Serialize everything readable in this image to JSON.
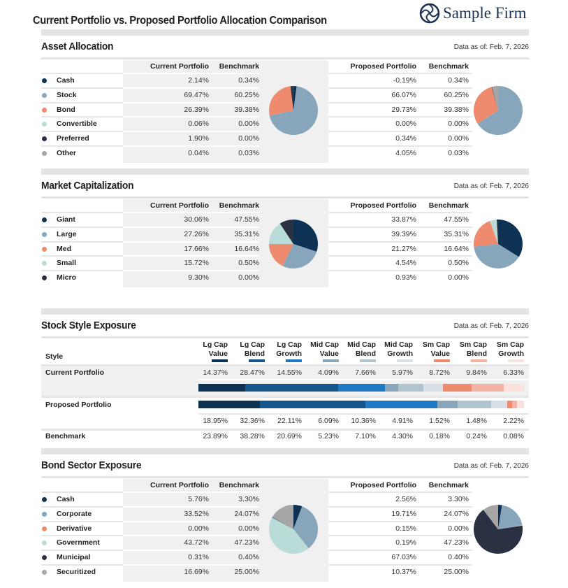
{
  "title": "Current Portfolio vs. Proposed Portfolio Allocation Comparison",
  "logo": {
    "text": "Sample Firm",
    "icon": "swirl-logo-icon"
  },
  "colors": {
    "cash": "#0e3253",
    "stock": "#87a6bc",
    "bond": "#ee8a6e",
    "convertible": "#b9dcd8",
    "preferred": "#2a3142",
    "other": "#a6a6a6"
  },
  "chart_data": [
    {
      "type": "pie",
      "title": "Asset Allocation",
      "date": "Data as of: Feb. 7, 2026",
      "headers": {
        "current": "Current Portfolio",
        "benchmark": "Benchmark",
        "proposed": "Proposed Portfolio",
        "benchmark2": "Benchmark"
      },
      "categories": [
        "Cash",
        "Stock",
        "Bond",
        "Convertible",
        "Preferred",
        "Other"
      ],
      "colors": [
        "#0e3253",
        "#87a6bc",
        "#ee8a6e",
        "#b9dcd8",
        "#2a3142",
        "#a6a6a6"
      ],
      "current": [
        "2.14%",
        "69.47%",
        "26.39%",
        "0.06%",
        "1.90%",
        "0.04%"
      ],
      "current_benchmark": [
        "0.34%",
        "60.25%",
        "39.38%",
        "0.00%",
        "0.00%",
        "0.03%"
      ],
      "proposed": [
        "-0.19%",
        "66.07%",
        "29.73%",
        "0.00%",
        "0.34%",
        "4.05%"
      ],
      "proposed_benchmark": [
        "0.34%",
        "60.25%",
        "39.38%",
        "0.00%",
        "0.00%",
        "0.03%"
      ]
    },
    {
      "type": "pie",
      "title": "Market Capitalization",
      "date": "Data as of: Feb. 7, 2026",
      "headers": {
        "current": "Current Portfolio",
        "benchmark": "Benchmark",
        "proposed": "Proposed Portfolio",
        "benchmark2": "Benchmark"
      },
      "categories": [
        "Giant",
        "Large",
        "Med",
        "Small",
        "Micro"
      ],
      "colors": [
        "#0e3253",
        "#87a6bc",
        "#ee8a6e",
        "#b9dcd8",
        "#2a3142"
      ],
      "current": [
        "30.06%",
        "27.26%",
        "17.66%",
        "15.72%",
        "9.30%"
      ],
      "current_benchmark": [
        "47.55%",
        "35.31%",
        "16.64%",
        "0.50%",
        "0.00%"
      ],
      "proposed": [
        "33.87%",
        "39.39%",
        "21.27%",
        "4.54%",
        "0.93%"
      ],
      "proposed_benchmark": [
        "47.55%",
        "35.31%",
        "16.64%",
        "0.50%",
        "0.00%"
      ]
    },
    {
      "type": "bar",
      "title": "Stock Style Exposure",
      "date": "Data as of: Feb. 7, 2026",
      "style_label": "Style",
      "categories": [
        [
          "Lg Cap",
          "Value"
        ],
        [
          "Lg Cap",
          "Blend"
        ],
        [
          "Lg Cap",
          "Growth"
        ],
        [
          "Mid Cap",
          "Value"
        ],
        [
          "Mid Cap",
          "Blend"
        ],
        [
          "Mid Cap",
          "Growth"
        ],
        [
          "Sm Cap",
          "Value"
        ],
        [
          "Sm Cap",
          "Blend"
        ],
        [
          "Sm Cap",
          "Growth"
        ]
      ],
      "colors": [
        "#0c3354",
        "#14568c",
        "#1f78c4",
        "#87a6bc",
        "#b0c4d0",
        "#d6e0e6",
        "#ee8a6e",
        "#f4b3a3",
        "#fbe1dc"
      ],
      "series": [
        {
          "name": "Current Portfolio",
          "values": [
            "14.37%",
            "28.47%",
            "14.55%",
            "4.09%",
            "7.66%",
            "5.97%",
            "8.72%",
            "9.84%",
            "6.33%"
          ]
        },
        {
          "name": "Proposed Portfolio",
          "values": [
            "18.95%",
            "32.36%",
            "22.11%",
            "6.09%",
            "10.36%",
            "4.91%",
            "1.52%",
            "1.48%",
            "2.22%"
          ]
        },
        {
          "name": "Benchmark",
          "values": [
            "23.89%",
            "38.28%",
            "20.69%",
            "5.23%",
            "7.10%",
            "4.30%",
            "0.18%",
            "0.24%",
            "0.08%"
          ]
        }
      ]
    },
    {
      "type": "pie",
      "title": "Bond Sector Exposure",
      "date": "Data as of: Feb. 7, 2026",
      "headers": {
        "current": "Current Portfolio",
        "benchmark": "Benchmark",
        "proposed": "Proposed Portfolio",
        "benchmark2": "Benchmark"
      },
      "categories": [
        "Cash",
        "Corporate",
        "Derivative",
        "Government",
        "Municipal",
        "Securitized"
      ],
      "colors": [
        "#0e3253",
        "#87a6bc",
        "#ee8a6e",
        "#b9dcd8",
        "#2a3142",
        "#a6a6a6"
      ],
      "current": [
        "5.76%",
        "33.52%",
        "0.00%",
        "43.72%",
        "0.31%",
        "16.69%"
      ],
      "current_benchmark": [
        "3.30%",
        "24.07%",
        "0.00%",
        "47.23%",
        "0.40%",
        "25.00%"
      ],
      "proposed": [
        "2.56%",
        "19.71%",
        "0.15%",
        "0.19%",
        "67.03%",
        "10.37%"
      ],
      "proposed_benchmark": [
        "3.30%",
        "24.07%",
        "0.00%",
        "47.23%",
        "0.40%",
        "25.00%"
      ]
    }
  ]
}
